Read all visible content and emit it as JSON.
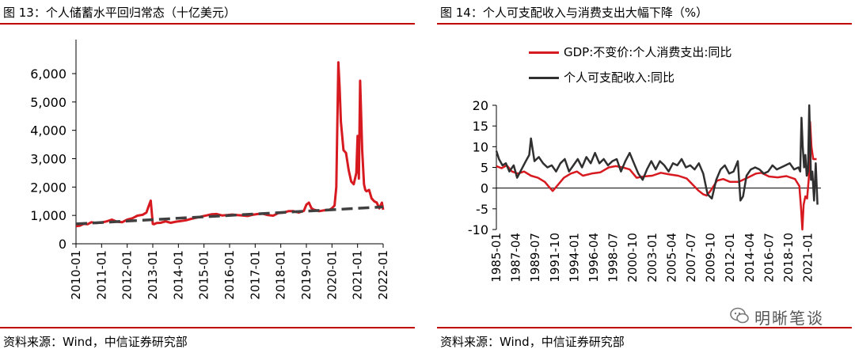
{
  "left_panel": {
    "title": "图 13：个人储蓄水平回归常态（十亿美元）",
    "source": "资料来源：Wind，中信证券研究部"
  },
  "right_panel": {
    "title": "图 14：个人可支配收入与消费支出大幅下降（%）",
    "source": "资料来源：Wind，中信证券研究部"
  },
  "watermark": {
    "text": "明晰笔谈"
  },
  "colors": {
    "red": "#d71920",
    "dark": "#303030",
    "trend": "#404040",
    "rule": "#c00000"
  },
  "chart_data": [
    {
      "type": "line",
      "title": "个人储蓄水平回归常态（十亿美元）",
      "x_tick_labels": [
        "2010-01",
        "2011-01",
        "2012-01",
        "2013-01",
        "2014-01",
        "2015-01",
        "2016-01",
        "2017-01",
        "2018-01",
        "2019-01",
        "2020-01",
        "2021-01",
        "2022-01"
      ],
      "y_tick_labels": [
        "0",
        "1,000",
        "2,000",
        "3,000",
        "4,000",
        "5,000",
        "6,000"
      ],
      "x_range": [
        2010.0,
        2022.0
      ],
      "ylim": [
        0,
        6500
      ],
      "series": [
        {
          "name": "个人储蓄",
          "style": "solid-red",
          "x": [
            2010.0,
            2010.15,
            2010.3,
            2010.45,
            2010.6,
            2010.8,
            2011.0,
            2011.2,
            2011.4,
            2011.6,
            2011.8,
            2012.0,
            2012.2,
            2012.4,
            2012.6,
            2012.75,
            2012.85,
            2012.92,
            2013.0,
            2013.05,
            2013.15,
            2013.3,
            2013.5,
            2013.7,
            2013.9,
            2014.1,
            2014.3,
            2014.5,
            2014.7,
            2014.9,
            2015.1,
            2015.3,
            2015.5,
            2015.7,
            2015.9,
            2016.1,
            2016.3,
            2016.5,
            2016.7,
            2016.9,
            2017.1,
            2017.3,
            2017.5,
            2017.7,
            2017.9,
            2018.1,
            2018.3,
            2018.5,
            2018.7,
            2018.9,
            2019.0,
            2019.1,
            2019.2,
            2019.3,
            2019.5,
            2019.7,
            2019.9,
            2020.0,
            2020.1,
            2020.17,
            2020.25,
            2020.3,
            2020.35,
            2020.45,
            2020.55,
            2020.65,
            2020.75,
            2020.85,
            2020.95,
            2021.0,
            2021.05,
            2021.1,
            2021.18,
            2021.25,
            2021.3,
            2021.35,
            2021.45,
            2021.55,
            2021.65,
            2021.75,
            2021.85,
            2021.95,
            2022.0
          ],
          "values": [
            620,
            640,
            700,
            690,
            760,
            730,
            750,
            790,
            850,
            780,
            760,
            850,
            900,
            990,
            1020,
            1100,
            1350,
            1520,
            700,
            690,
            730,
            740,
            790,
            740,
            780,
            800,
            830,
            880,
            920,
            960,
            1000,
            1040,
            1050,
            1000,
            1010,
            1030,
            1010,
            1000,
            980,
            1020,
            1050,
            1060,
            1010,
            990,
            1080,
            1100,
            1150,
            1150,
            1100,
            1160,
            1380,
            1450,
            1250,
            1200,
            1150,
            1180,
            1200,
            1250,
            1350,
            2000,
            6400,
            5500,
            4300,
            3300,
            3200,
            2600,
            2200,
            2100,
            2500,
            3800,
            2300,
            5750,
            3300,
            2100,
            1900,
            1850,
            1900,
            1600,
            1500,
            1450,
            1250,
            1450,
            1200
          ]
        },
        {
          "name": "趋势线",
          "style": "dashed-dark",
          "x": [
            2010.0,
            2022.0
          ],
          "values": [
            700,
            1300
          ]
        }
      ]
    },
    {
      "type": "line",
      "title": "个人可支配收入与消费支出大幅下降（%）",
      "x_tick_labels": [
        "1985-01",
        "1987-04",
        "1989-07",
        "1991-10",
        "1994-01",
        "1996-04",
        "1998-07",
        "2000-10",
        "2003-01",
        "2005-04",
        "2007-07",
        "2009-10",
        "2012-01",
        "2014-04",
        "2016-07",
        "2018-10",
        "2021-01"
      ],
      "y_tick_labels": [
        "20",
        "15",
        "10",
        "5",
        "0",
        "-5",
        "-10"
      ],
      "x_range": [
        1985.0,
        2022.5
      ],
      "ylim": [
        -10,
        20
      ],
      "legend_position": "top",
      "series": [
        {
          "name": "GDP:不变价:个人消费支出:同比",
          "style": "solid-red",
          "x": [
            1985.0,
            1985.6,
            1986.2,
            1986.8,
            1987.5,
            1988.2,
            1989.0,
            1989.8,
            1990.6,
            1991.0,
            1991.5,
            1992.0,
            1992.8,
            1993.6,
            1994.3,
            1995.0,
            1996.0,
            1997.0,
            1998.0,
            1998.8,
            1999.6,
            2000.4,
            2001.2,
            2002.0,
            2003.0,
            2004.0,
            2005.0,
            2006.0,
            2007.0,
            2007.6,
            2008.3,
            2008.9,
            2009.3,
            2009.8,
            2010.5,
            2011.2,
            2012.0,
            2013.0,
            2014.0,
            2015.0,
            2015.6,
            2016.5,
            2017.5,
            2018.5,
            2019.5,
            2020.0,
            2020.2,
            2020.35,
            2020.5,
            2020.7,
            2020.9,
            2021.1,
            2021.25,
            2021.4,
            2021.6,
            2021.8,
            2022.0
          ],
          "values": [
            5.3,
            4.8,
            5.5,
            4.0,
            3.5,
            4.0,
            3.0,
            2.5,
            1.5,
            0.5,
            -0.7,
            0.5,
            2.5,
            3.5,
            4.0,
            3.0,
            3.5,
            3.8,
            5.0,
            5.3,
            5.0,
            4.5,
            2.5,
            2.8,
            3.0,
            3.7,
            3.3,
            3.0,
            2.3,
            1.0,
            -0.5,
            -1.5,
            -1.8,
            -0.5,
            1.8,
            2.2,
            1.5,
            1.5,
            2.5,
            3.5,
            3.7,
            2.8,
            2.6,
            2.9,
            2.2,
            0.5,
            -5.0,
            -10.0,
            -4.0,
            -2.0,
            -2.5,
            2.5,
            16.0,
            10.0,
            7.0,
            7.0,
            7.0
          ]
        },
        {
          "name": "个人可支配收入:同比",
          "style": "solid-dark",
          "x": [
            1985.0,
            1985.3,
            1985.7,
            1986.1,
            1986.5,
            1987.0,
            1987.4,
            1987.9,
            1988.4,
            1988.8,
            1989.0,
            1989.4,
            1989.9,
            1990.4,
            1990.9,
            1991.4,
            1991.9,
            1992.4,
            1992.9,
            1993.4,
            1993.9,
            1994.4,
            1994.9,
            1995.4,
            1995.9,
            1996.4,
            1996.9,
            1997.4,
            1997.9,
            1998.4,
            1998.9,
            1999.4,
            1999.9,
            2000.4,
            2000.9,
            2001.4,
            2001.9,
            2002.4,
            2002.9,
            2003.4,
            2003.9,
            2004.4,
            2004.9,
            2005.4,
            2005.9,
            2006.4,
            2006.9,
            2007.4,
            2007.9,
            2008.4,
            2008.9,
            2009.4,
            2009.9,
            2010.4,
            2010.9,
            2011.4,
            2011.9,
            2012.4,
            2012.9,
            2013.2,
            2013.5,
            2013.9,
            2014.4,
            2014.9,
            2015.4,
            2015.9,
            2016.4,
            2016.9,
            2017.4,
            2017.9,
            2018.4,
            2018.9,
            2019.4,
            2019.9,
            2020.1,
            2020.25,
            2020.4,
            2020.55,
            2020.7,
            2020.85,
            2021.0,
            2021.15,
            2021.25,
            2021.35,
            2021.5,
            2021.7,
            2021.9,
            2022.1
          ],
          "values": [
            9.0,
            7.0,
            5.5,
            6.0,
            4.0,
            5.5,
            2.5,
            4.5,
            6.5,
            8.0,
            12.0,
            6.5,
            7.5,
            6.0,
            5.0,
            5.5,
            4.0,
            6.0,
            7.0,
            4.0,
            5.5,
            7.0,
            5.0,
            7.5,
            6.0,
            8.5,
            6.0,
            7.0,
            5.5,
            6.5,
            7.0,
            4.0,
            6.5,
            8.5,
            6.0,
            3.5,
            2.0,
            4.5,
            6.5,
            4.5,
            6.5,
            5.5,
            4.0,
            6.0,
            5.5,
            7.0,
            5.0,
            5.5,
            4.5,
            6.0,
            3.5,
            -1.5,
            -2.5,
            2.0,
            4.5,
            5.5,
            3.5,
            4.0,
            6.5,
            -3.0,
            -2.0,
            3.0,
            4.5,
            5.0,
            4.5,
            3.5,
            4.0,
            5.5,
            4.5,
            5.0,
            5.5,
            6.0,
            4.5,
            5.0,
            4.0,
            17.0,
            10.0,
            5.0,
            8.0,
            3.0,
            4.0,
            20.0,
            12.0,
            2.0,
            4.0,
            -3.0,
            6.0,
            -4.0
          ]
        }
      ]
    }
  ]
}
